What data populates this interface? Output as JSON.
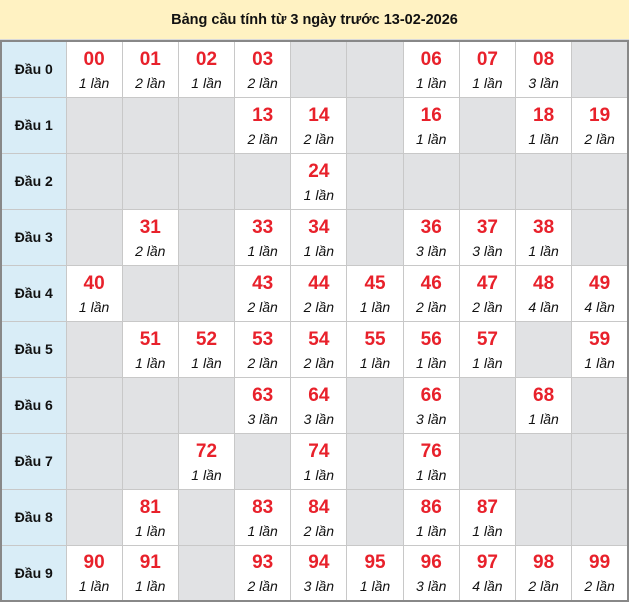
{
  "title": "Bảng cầu tính từ 3 ngày trước 13-02-2026",
  "colors": {
    "number": "#e8212b",
    "header_bg": "#fff2c2",
    "row_label_bg": "#d9edf7",
    "empty_bg": "#e1e2e4"
  },
  "rows": [
    {
      "label": "Đầu 0",
      "cells": [
        {
          "num": "00",
          "count": "1 lần"
        },
        {
          "num": "01",
          "count": "2 lần"
        },
        {
          "num": "02",
          "count": "1 lần"
        },
        {
          "num": "03",
          "count": "2 lần"
        },
        null,
        null,
        {
          "num": "06",
          "count": "1 lần"
        },
        {
          "num": "07",
          "count": "1 lần"
        },
        {
          "num": "08",
          "count": "3 lần"
        },
        null
      ]
    },
    {
      "label": "Đầu 1",
      "cells": [
        null,
        null,
        null,
        {
          "num": "13",
          "count": "2 lần"
        },
        {
          "num": "14",
          "count": "2 lần"
        },
        null,
        {
          "num": "16",
          "count": "1 lần"
        },
        null,
        {
          "num": "18",
          "count": "1 lần"
        },
        {
          "num": "19",
          "count": "2 lần"
        }
      ]
    },
    {
      "label": "Đầu 2",
      "cells": [
        null,
        null,
        null,
        null,
        {
          "num": "24",
          "count": "1 lần"
        },
        null,
        null,
        null,
        null,
        null
      ]
    },
    {
      "label": "Đầu 3",
      "cells": [
        null,
        {
          "num": "31",
          "count": "2 lần"
        },
        null,
        {
          "num": "33",
          "count": "1 lần"
        },
        {
          "num": "34",
          "count": "1 lần"
        },
        null,
        {
          "num": "36",
          "count": "3 lần"
        },
        {
          "num": "37",
          "count": "3 lần"
        },
        {
          "num": "38",
          "count": "1 lần"
        },
        null
      ]
    },
    {
      "label": "Đầu 4",
      "cells": [
        {
          "num": "40",
          "count": "1 lần"
        },
        null,
        null,
        {
          "num": "43",
          "count": "2 lần"
        },
        {
          "num": "44",
          "count": "2 lần"
        },
        {
          "num": "45",
          "count": "1 lần"
        },
        {
          "num": "46",
          "count": "2 lần"
        },
        {
          "num": "47",
          "count": "2 lần"
        },
        {
          "num": "48",
          "count": "4 lần"
        },
        {
          "num": "49",
          "count": "4 lần"
        }
      ]
    },
    {
      "label": "Đầu 5",
      "cells": [
        null,
        {
          "num": "51",
          "count": "1 lần"
        },
        {
          "num": "52",
          "count": "1 lần"
        },
        {
          "num": "53",
          "count": "2 lần"
        },
        {
          "num": "54",
          "count": "2 lần"
        },
        {
          "num": "55",
          "count": "1 lần"
        },
        {
          "num": "56",
          "count": "1 lần"
        },
        {
          "num": "57",
          "count": "1 lần"
        },
        null,
        {
          "num": "59",
          "count": "1 lần"
        }
      ]
    },
    {
      "label": "Đầu 6",
      "cells": [
        null,
        null,
        null,
        {
          "num": "63",
          "count": "3 lần"
        },
        {
          "num": "64",
          "count": "3 lần"
        },
        null,
        {
          "num": "66",
          "count": "3 lần"
        },
        null,
        {
          "num": "68",
          "count": "1 lần"
        },
        null
      ]
    },
    {
      "label": "Đầu 7",
      "cells": [
        null,
        null,
        {
          "num": "72",
          "count": "1 lần"
        },
        null,
        {
          "num": "74",
          "count": "1 lần"
        },
        null,
        {
          "num": "76",
          "count": "1 lần"
        },
        null,
        null,
        null
      ]
    },
    {
      "label": "Đầu 8",
      "cells": [
        null,
        {
          "num": "81",
          "count": "1 lần"
        },
        null,
        {
          "num": "83",
          "count": "1 lần"
        },
        {
          "num": "84",
          "count": "2 lần"
        },
        null,
        {
          "num": "86",
          "count": "1 lần"
        },
        {
          "num": "87",
          "count": "1 lần"
        },
        null,
        null
      ]
    },
    {
      "label": "Đầu 9",
      "cells": [
        {
          "num": "90",
          "count": "1 lần"
        },
        {
          "num": "91",
          "count": "1 lần"
        },
        null,
        {
          "num": "93",
          "count": "2 lần"
        },
        {
          "num": "94",
          "count": "3 lần"
        },
        {
          "num": "95",
          "count": "1 lần"
        },
        {
          "num": "96",
          "count": "3 lần"
        },
        {
          "num": "97",
          "count": "4 lần"
        },
        {
          "num": "98",
          "count": "2 lần"
        },
        {
          "num": "99",
          "count": "2 lần"
        }
      ]
    }
  ]
}
